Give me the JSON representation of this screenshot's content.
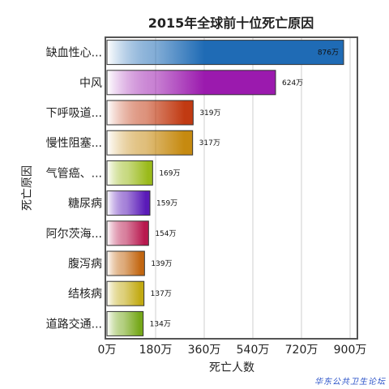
{
  "chart_data": {
    "type": "bar",
    "orientation": "horizontal",
    "title": "2015年全球前十位死亡原因",
    "xlabel": "死亡人数",
    "ylabel": "死亡原因",
    "xlim": [
      0,
      900
    ],
    "x_ticks": [
      "0万",
      "180万",
      "360万",
      "540万",
      "720万",
      "900万"
    ],
    "x_tick_values": [
      0,
      180,
      360,
      540,
      720,
      900
    ],
    "grid": true,
    "categories": [
      "缺血性心...",
      "中风",
      "下呼吸道...",
      "慢性阻塞...",
      "气管癌、...",
      "糖尿病",
      "阿尔茨海...",
      "腹泻病",
      "结核病",
      "道路交通..."
    ],
    "values": [
      876,
      624,
      319,
      317,
      169,
      159,
      154,
      139,
      137,
      134
    ],
    "value_labels": [
      "876万",
      "624万",
      "319万",
      "317万",
      "169万",
      "159万",
      "154万",
      "139万",
      "137万",
      "134万"
    ],
    "colors": [
      "#1f6bb5",
      "#9b1aae",
      "#c13a12",
      "#c68a10",
      "#9aba1a",
      "#5a1ab8",
      "#b8184e",
      "#c26610",
      "#c2aa12",
      "#76a81a"
    ]
  },
  "watermark": "华东公共卫生论坛"
}
